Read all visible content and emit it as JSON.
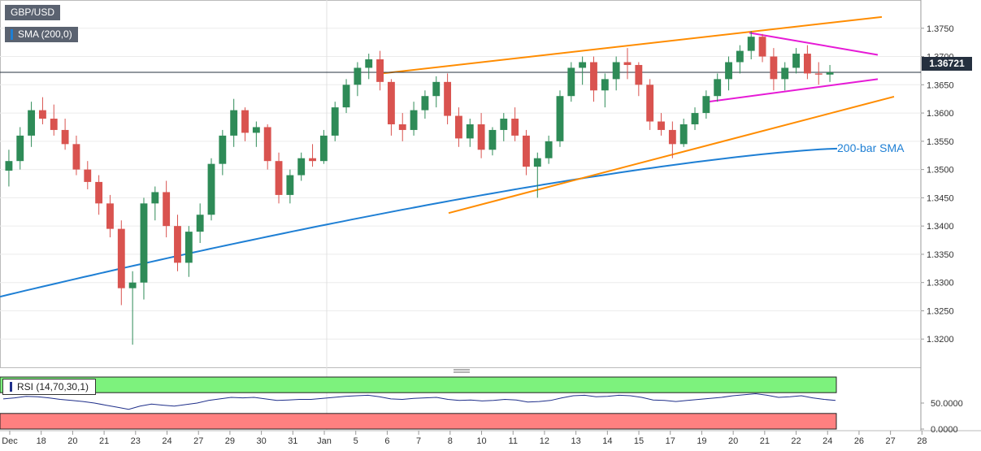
{
  "symbol": "GBP/USD",
  "indicator_label": "SMA (200,0)",
  "current_price": "1.36721",
  "sma_annotation": "200-bar SMA",
  "rsi_label": "RSI (14,70,30,1)",
  "colors": {
    "bull": "#2e8b57",
    "bear": "#d9534f",
    "sma": "#1e7fd4",
    "channel": "#ff8c00",
    "triangle": "#e61ad6",
    "rsi_line": "#1f2f8a",
    "rsi_overbought": "#7df27d",
    "rsi_oversold": "#ff8080"
  },
  "chart_data": [
    {
      "type": "candlestick",
      "title": "GBP/USD",
      "ylim": [
        1.315,
        1.38
      ],
      "yticks": [
        "1.3750",
        "1.3700",
        "1.3650",
        "1.3600",
        "1.3550",
        "1.3500",
        "1.3450",
        "1.3400",
        "1.3350",
        "1.3300",
        "1.3250",
        "1.3200"
      ],
      "xticks": [
        "Dec",
        "18",
        "20",
        "21",
        "23",
        "24",
        "27",
        "29",
        "30",
        "31",
        "Jan",
        "5",
        "6",
        "7",
        "8",
        "10",
        "11",
        "12",
        "13",
        "14",
        "15",
        "17",
        "19",
        "20",
        "21",
        "22",
        "24",
        "26",
        "27",
        "28"
      ],
      "last_price": 1.36721,
      "candles": [
        [
          1.3498,
          1.3535,
          1.347,
          1.3515
        ],
        [
          1.3515,
          1.3575,
          1.35,
          1.356
        ],
        [
          1.356,
          1.362,
          1.354,
          1.3605
        ],
        [
          1.3605,
          1.3628,
          1.358,
          1.359
        ],
        [
          1.359,
          1.3615,
          1.356,
          1.357
        ],
        [
          1.357,
          1.359,
          1.3535,
          1.3545
        ],
        [
          1.3545,
          1.356,
          1.349,
          1.35
        ],
        [
          1.35,
          1.3515,
          1.3465,
          1.3478
        ],
        [
          1.3478,
          1.349,
          1.342,
          1.344
        ],
        [
          1.344,
          1.3455,
          1.338,
          1.3395
        ],
        [
          1.3395,
          1.341,
          1.326,
          1.329
        ],
        [
          1.329,
          1.332,
          1.319,
          1.33
        ],
        [
          1.33,
          1.345,
          1.327,
          1.344
        ],
        [
          1.344,
          1.347,
          1.341,
          1.346
        ],
        [
          1.346,
          1.348,
          1.338,
          1.34
        ],
        [
          1.34,
          1.342,
          1.332,
          1.3335
        ],
        [
          1.3335,
          1.34,
          1.331,
          1.339
        ],
        [
          1.339,
          1.344,
          1.337,
          1.342
        ],
        [
          1.342,
          1.352,
          1.341,
          1.351
        ],
        [
          1.351,
          1.357,
          1.349,
          1.356
        ],
        [
          1.356,
          1.3625,
          1.354,
          1.3605
        ],
        [
          1.3605,
          1.361,
          1.355,
          1.3565
        ],
        [
          1.3565,
          1.3585,
          1.354,
          1.3575
        ],
        [
          1.3575,
          1.358,
          1.35,
          1.3515
        ],
        [
          1.3515,
          1.353,
          1.344,
          1.3455
        ],
        [
          1.3455,
          1.35,
          1.344,
          1.349
        ],
        [
          1.349,
          1.353,
          1.348,
          1.352
        ],
        [
          1.352,
          1.3545,
          1.3505,
          1.3515
        ],
        [
          1.3515,
          1.357,
          1.351,
          1.356
        ],
        [
          1.356,
          1.362,
          1.355,
          1.361
        ],
        [
          1.361,
          1.366,
          1.36,
          1.365
        ],
        [
          1.365,
          1.369,
          1.363,
          1.368
        ],
        [
          1.368,
          1.3705,
          1.366,
          1.3695
        ],
        [
          1.3695,
          1.371,
          1.364,
          1.3655
        ],
        [
          1.3655,
          1.366,
          1.356,
          1.358
        ],
        [
          1.358,
          1.36,
          1.355,
          1.357
        ],
        [
          1.357,
          1.362,
          1.356,
          1.3605
        ],
        [
          1.3605,
          1.364,
          1.359,
          1.363
        ],
        [
          1.363,
          1.3665,
          1.361,
          1.3655
        ],
        [
          1.3655,
          1.367,
          1.358,
          1.3595
        ],
        [
          1.3595,
          1.361,
          1.354,
          1.3555
        ],
        [
          1.3555,
          1.359,
          1.354,
          1.358
        ],
        [
          1.358,
          1.36,
          1.352,
          1.3535
        ],
        [
          1.3535,
          1.3575,
          1.3525,
          1.357
        ],
        [
          1.357,
          1.36,
          1.355,
          1.359
        ],
        [
          1.359,
          1.361,
          1.355,
          1.356
        ],
        [
          1.356,
          1.357,
          1.349,
          1.3505
        ],
        [
          1.3505,
          1.353,
          1.345,
          1.352
        ],
        [
          1.352,
          1.356,
          1.351,
          1.355
        ],
        [
          1.355,
          1.364,
          1.354,
          1.363
        ],
        [
          1.363,
          1.369,
          1.362,
          1.368
        ],
        [
          1.368,
          1.37,
          1.365,
          1.369
        ],
        [
          1.369,
          1.37,
          1.362,
          1.364
        ],
        [
          1.364,
          1.367,
          1.361,
          1.366
        ],
        [
          1.366,
          1.37,
          1.364,
          1.369
        ],
        [
          1.369,
          1.3715,
          1.366,
          1.3685
        ],
        [
          1.3685,
          1.369,
          1.363,
          1.365
        ],
        [
          1.365,
          1.366,
          1.357,
          1.3585
        ],
        [
          1.3585,
          1.36,
          1.356,
          1.357
        ],
        [
          1.357,
          1.3585,
          1.352,
          1.3545
        ],
        [
          1.3545,
          1.359,
          1.354,
          1.358
        ],
        [
          1.358,
          1.361,
          1.357,
          1.36
        ],
        [
          1.36,
          1.364,
          1.359,
          1.363
        ],
        [
          1.363,
          1.367,
          1.362,
          1.366
        ],
        [
          1.366,
          1.37,
          1.364,
          1.369
        ],
        [
          1.369,
          1.372,
          1.367,
          1.371
        ],
        [
          1.371,
          1.3745,
          1.3695,
          1.3735
        ],
        [
          1.3735,
          1.374,
          1.369,
          1.37
        ],
        [
          1.37,
          1.3715,
          1.364,
          1.366
        ],
        [
          1.366,
          1.369,
          1.364,
          1.368
        ],
        [
          1.368,
          1.3715,
          1.367,
          1.3705
        ],
        [
          1.3705,
          1.372,
          1.366,
          1.367
        ],
        [
          1.367,
          1.369,
          1.365,
          1.3668
        ],
        [
          1.3668,
          1.3685,
          1.3655,
          1.3672
        ]
      ]
    },
    {
      "type": "line",
      "title": "RSI (14,70,30,1)",
      "ylim": [
        0,
        100
      ],
      "yticks": [
        "50.0000",
        "0.0000"
      ],
      "overbought": 70,
      "oversold": 30,
      "values": [
        58,
        60,
        63,
        62,
        60,
        57,
        55,
        53,
        50,
        46,
        42,
        38,
        44,
        48,
        46,
        44,
        47,
        50,
        55,
        58,
        61,
        60,
        61,
        58,
        55,
        56,
        57,
        57,
        59,
        61,
        63,
        64,
        65,
        62,
        58,
        57,
        59,
        60,
        61,
        57,
        55,
        56,
        54,
        55,
        57,
        56,
        52,
        53,
        55,
        60,
        64,
        65,
        62,
        63,
        65,
        64,
        61,
        56,
        55,
        53,
        55,
        57,
        59,
        61,
        64,
        66,
        68,
        65,
        61,
        62,
        64,
        60,
        57,
        55
      ]
    }
  ]
}
